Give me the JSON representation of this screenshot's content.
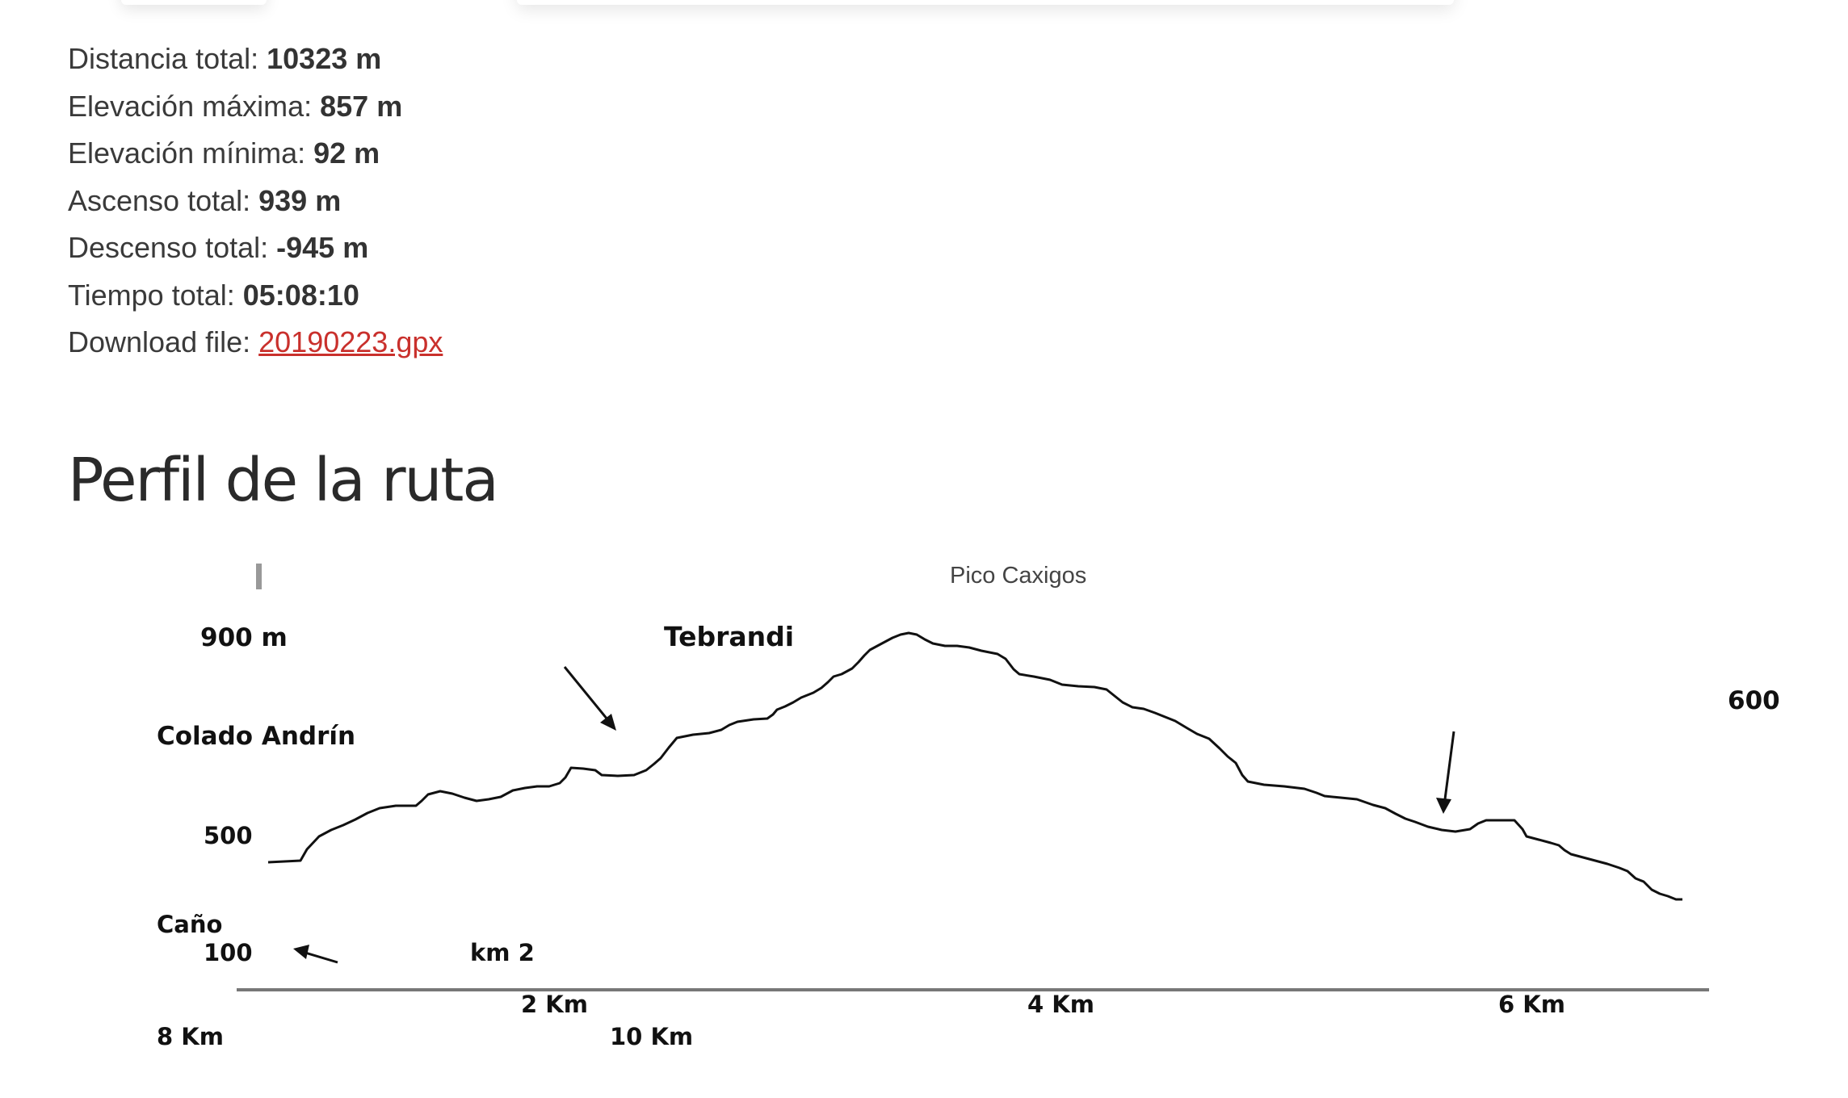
{
  "stats": {
    "distance": {
      "label": "Distancia total: ",
      "value": "10323 m"
    },
    "max_elevation": {
      "label": "Elevación máxima: ",
      "value": "857 m"
    },
    "min_elevation": {
      "label": "Elevación mínima: ",
      "value": "92 m"
    },
    "ascent": {
      "label": "Ascenso total: ",
      "value": "939 m"
    },
    "descent": {
      "label": "Descenso total: ",
      "value": "-945 m"
    },
    "time": {
      "label": "Tiempo total: ",
      "value": "05:08:10"
    },
    "download": {
      "label": "Download file: ",
      "link_text": "20190223.gpx"
    }
  },
  "profile": {
    "title": "Perfil de la ruta",
    "labels": {
      "peak": "Pico Caxigos",
      "y_900": "900 m",
      "tebrandi": "Tebrandi",
      "right_600": "600",
      "colado": "Colado Andrín",
      "y_500": "500",
      "cano": "Caño",
      "y_100": "100",
      "km2": "km 2",
      "x_2km": "2 Km",
      "x_4km": "4 Km",
      "x_6km": "6 Km",
      "x_8km": "8 Km",
      "x_10km": "10 Km"
    }
  },
  "colors": {
    "link": "#c9302c",
    "text": "#333333",
    "line": "#111111",
    "axis": "#777777"
  }
}
